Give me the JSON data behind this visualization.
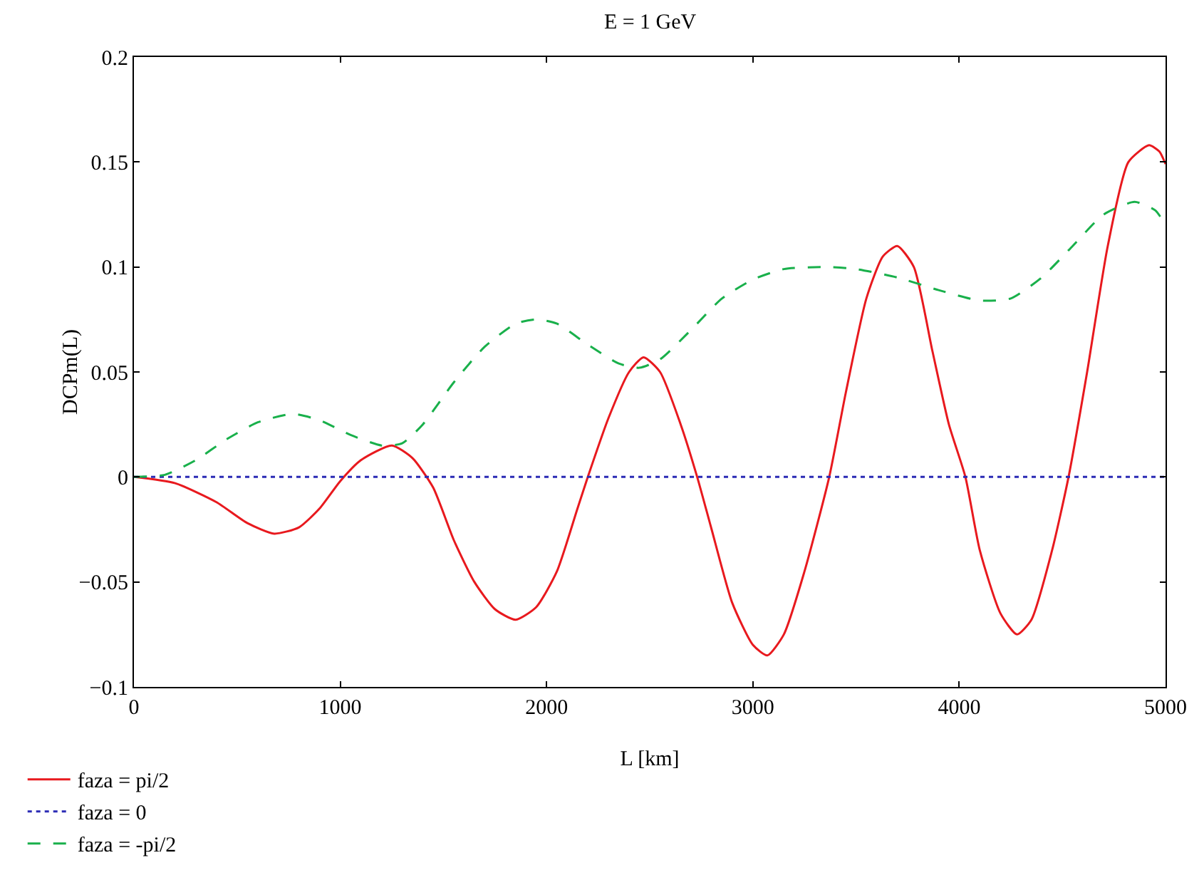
{
  "chart_data": {
    "type": "line",
    "title": "E = 1 GeV",
    "xlabel": "L [km]",
    "ylabel": "DCPm(L)",
    "xlim": [
      0,
      5000
    ],
    "xticks": [
      0,
      1000,
      2000,
      3000,
      4000,
      5000
    ],
    "ylim": [
      -0.1,
      0.2
    ],
    "yticks": [
      -0.1,
      -0.05,
      0,
      0.05,
      0.1,
      0.15,
      0.2
    ],
    "grid": false,
    "legend": "bottom left",
    "marker": "none",
    "series": [
      {
        "name": "faza = pi/2",
        "color": "#e8191e",
        "line_style": "solid",
        "x": [
          0,
          200,
          400,
          550,
          680,
          800,
          900,
          1000,
          1100,
          1250,
          1350,
          1450,
          1550,
          1650,
          1750,
          1850,
          1950,
          2050,
          2150,
          2200,
          2300,
          2400,
          2470,
          2550,
          2650,
          2730,
          2800,
          2900,
          3000,
          3070,
          3150,
          3250,
          3370,
          3450,
          3550,
          3630,
          3700,
          3780,
          3870,
          3950,
          4030,
          4100,
          4200,
          4280,
          4350,
          4450,
          4530,
          4620,
          4720,
          4820,
          4920,
          4970,
          5000
        ],
        "values": [
          0,
          -0.003,
          -0.012,
          -0.022,
          -0.027,
          -0.024,
          -0.015,
          -0.002,
          0.008,
          0.015,
          0.009,
          -0.005,
          -0.03,
          -0.05,
          -0.063,
          -0.068,
          -0.062,
          -0.045,
          -0.015,
          0,
          0.028,
          0.05,
          0.057,
          0.05,
          0.025,
          0,
          -0.025,
          -0.06,
          -0.08,
          -0.085,
          -0.075,
          -0.045,
          0,
          0.04,
          0.085,
          0.105,
          0.11,
          0.1,
          0.06,
          0.025,
          0,
          -0.035,
          -0.065,
          -0.075,
          -0.068,
          -0.035,
          0,
          0.05,
          0.11,
          0.15,
          0.158,
          0.155,
          0.149
        ]
      },
      {
        "name": "faza = 0",
        "color": "#2b2bb5",
        "line_style": "dotted",
        "x": [
          0,
          5000
        ],
        "values": [
          0,
          0
        ]
      },
      {
        "name": "faza = -pi/2",
        "color": "#19b04b",
        "line_style": "dashed",
        "x": [
          0,
          150,
          300,
          450,
          600,
          770,
          900,
          1050,
          1200,
          1300,
          1400,
          1550,
          1700,
          1850,
          1950,
          2050,
          2200,
          2350,
          2450,
          2550,
          2700,
          2850,
          3000,
          3150,
          3350,
          3500,
          3700,
          3900,
          4100,
          4250,
          4400,
          4550,
          4700,
          4850,
          4950,
          5000
        ],
        "values": [
          0,
          0.001,
          0.008,
          0.018,
          0.026,
          0.03,
          0.027,
          0.02,
          0.015,
          0.016,
          0.025,
          0.045,
          0.062,
          0.073,
          0.075,
          0.073,
          0.063,
          0.054,
          0.052,
          0.056,
          0.07,
          0.085,
          0.094,
          0.099,
          0.1,
          0.099,
          0.095,
          0.089,
          0.084,
          0.085,
          0.095,
          0.11,
          0.125,
          0.131,
          0.127,
          0.12
        ]
      }
    ]
  }
}
